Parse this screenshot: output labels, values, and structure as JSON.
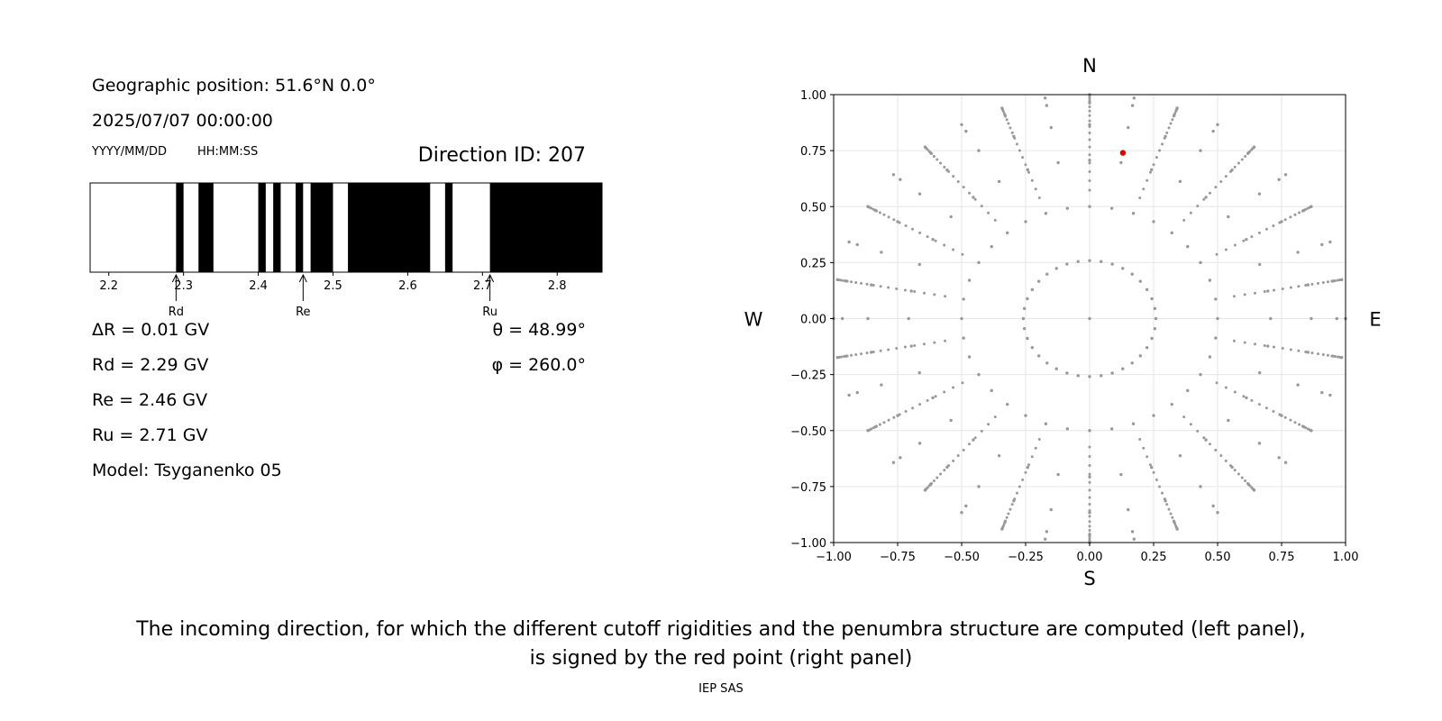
{
  "info": {
    "geo_position": "Geographic position: 51.6°N 0.0°",
    "datetime": "2025/07/07 00:00:00",
    "date_format": "YYYY/MM/DD",
    "time_format": "HH:MM:SS",
    "direction_id": "Direction ID: 207",
    "delta_r": "ΔR = 0.01 GV",
    "rd": "Rd = 2.29 GV",
    "re": "Re = 2.46 GV",
    "ru": "Ru = 2.71 GV",
    "model": "Model: Tsyganenko 05",
    "theta": "θ = 48.99°",
    "phi": "φ = 260.0°"
  },
  "caption": {
    "line1": "The incoming direction, for which the different cutoff rigidities and the penumbra structure are computed (left panel),",
    "line2": "is signed by the red point (right panel)",
    "credit": "IEP SAS"
  },
  "chart_data": [
    {
      "type": "bar",
      "description_kind": "penumbra",
      "xlim": [
        2.175,
        2.86
      ],
      "xticks": [
        2.2,
        2.3,
        2.4,
        2.5,
        2.6,
        2.7,
        2.8
      ],
      "xtick_labels": [
        "2.2",
        "2.3",
        "2.4",
        "2.5",
        "2.6",
        "2.7",
        "2.8"
      ],
      "forbidden_bands": [
        [
          2.29,
          2.3
        ],
        [
          2.32,
          2.34
        ],
        [
          2.4,
          2.41
        ],
        [
          2.42,
          2.43
        ],
        [
          2.45,
          2.46
        ],
        [
          2.47,
          2.5
        ],
        [
          2.52,
          2.63
        ],
        [
          2.65,
          2.66
        ],
        [
          2.71,
          2.86
        ]
      ],
      "markers": [
        {
          "label": "Rd",
          "x": 2.29
        },
        {
          "label": "Re",
          "x": 2.46
        },
        {
          "label": "Ru",
          "x": 2.71
        }
      ],
      "colors": {
        "forbidden": "#000000",
        "allowed": "#ffffff"
      }
    },
    {
      "type": "scatter",
      "xlim": [
        -1.0,
        1.0
      ],
      "ylim": [
        -1.0,
        1.0
      ],
      "xticks": [
        -1.0,
        -0.75,
        -0.5,
        -0.25,
        0.0,
        0.25,
        0.5,
        0.75,
        1.0
      ],
      "xtick_labels": [
        "−1.00",
        "−0.75",
        "−0.50",
        "−0.25",
        "0.00",
        "0.25",
        "0.50",
        "0.75",
        "1.00"
      ],
      "yticks": [
        1.0,
        0.75,
        0.5,
        0.25,
        0.0,
        -0.25,
        -0.5,
        -0.75,
        -1.0
      ],
      "ytick_labels": [
        "1.00",
        "0.75",
        "0.50",
        "0.25",
        "0.00",
        "−0.25",
        "−0.50",
        "−0.75",
        "−1.00"
      ],
      "grid": true,
      "compass": {
        "north": "N",
        "south": "S",
        "west": "W",
        "east": "E"
      },
      "grid_pattern": {
        "zenith_step_deg": 15,
        "azimuth_step_deg": 10,
        "max_zenith_deg": 90,
        "projection": "sin(zenith)"
      },
      "highlight": {
        "x": 0.13,
        "y": 0.74,
        "color": "#e00000"
      },
      "colors": {
        "points": "#999999",
        "grid": "#e6e6e6"
      }
    }
  ]
}
